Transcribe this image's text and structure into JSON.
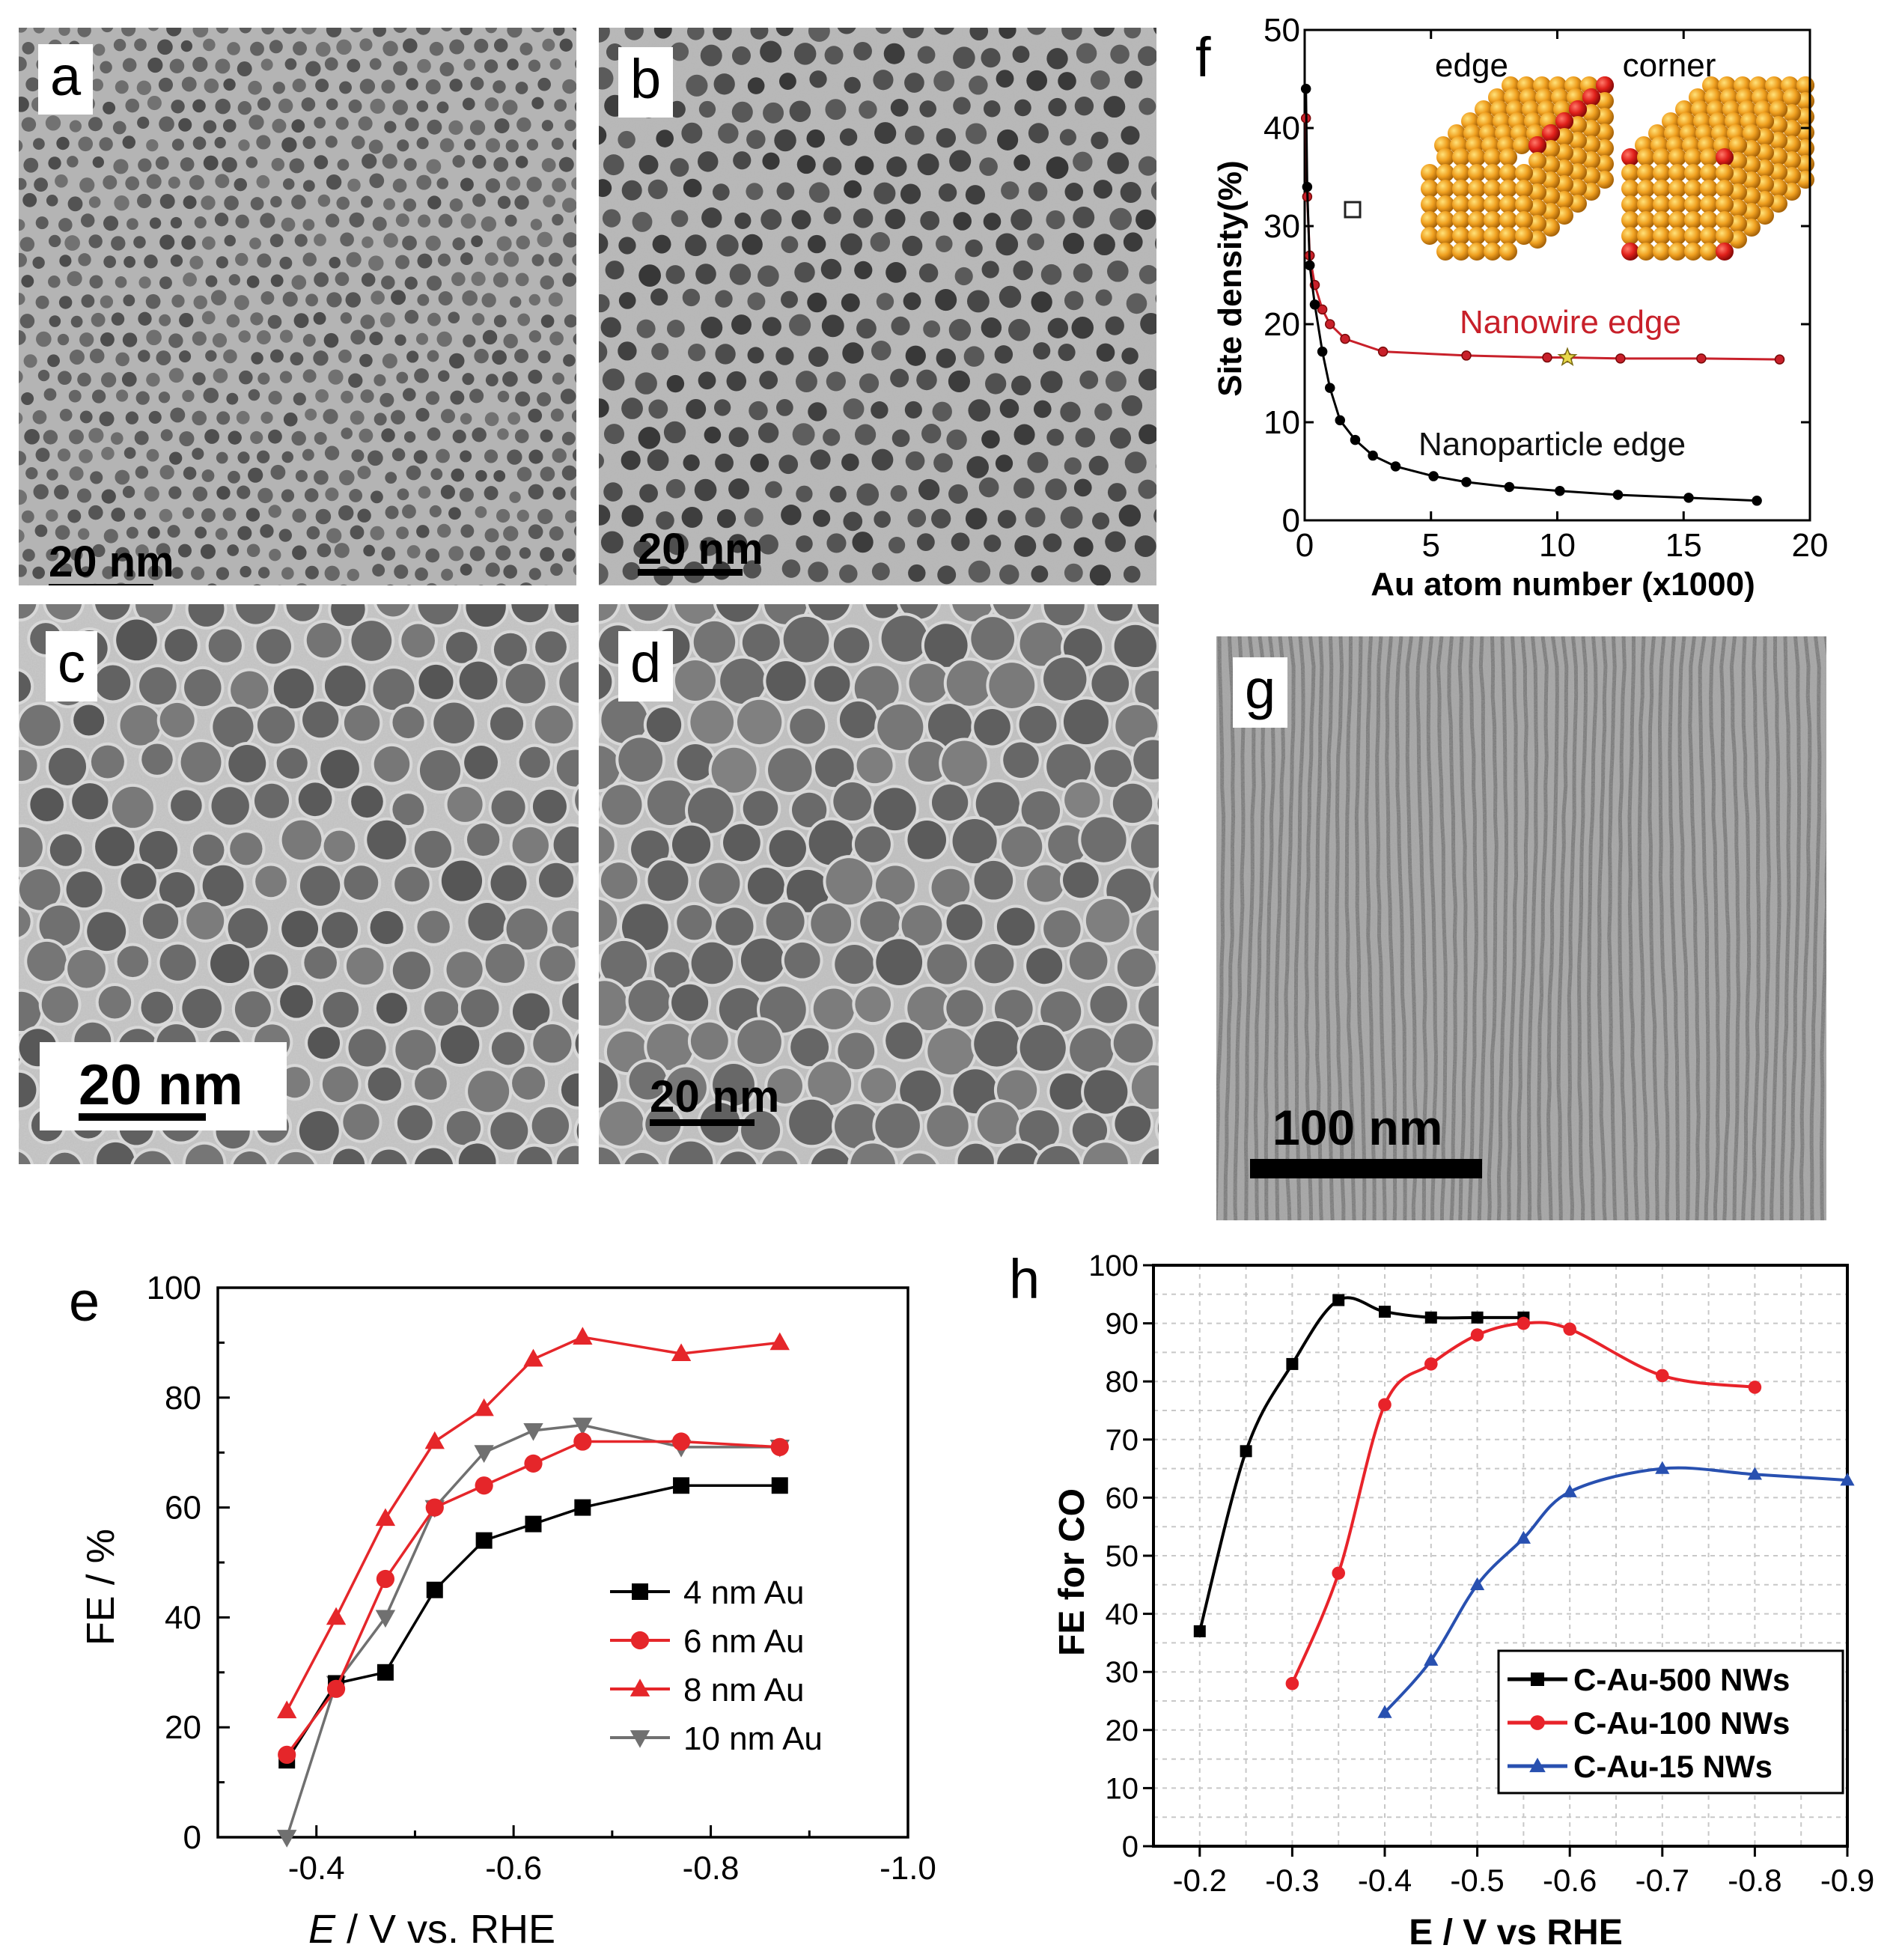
{
  "panels": {
    "a": {
      "label": "a",
      "scale_bar": "20 nm"
    },
    "b": {
      "label": "b",
      "scale_bar": "20 nm"
    },
    "c": {
      "label": "c",
      "scale_bar": "20 nm"
    },
    "d": {
      "label": "d",
      "scale_bar": "20 nm"
    },
    "g": {
      "label": "g",
      "scale_bar": "100 nm"
    }
  },
  "chart_data": [
    {
      "panel": "f",
      "label": "f",
      "type": "line",
      "xlabel": "Au atom number (x1000)",
      "ylabel": "Site density(%)",
      "xlim": [
        0,
        20
      ],
      "ylim": [
        0,
        50
      ],
      "xticks": [
        "0",
        "5",
        "10",
        "15",
        "20"
      ],
      "yticks": [
        "0",
        "10",
        "20",
        "30",
        "40",
        "50"
      ],
      "inset_labels": [
        "edge",
        "corner"
      ],
      "series": [
        {
          "name": "Nanowire edge",
          "color": "#c8202a",
          "x": [
            0.05,
            0.1,
            0.2,
            0.4,
            0.7,
            1.0,
            1.6,
            3.1,
            6.4,
            9.6,
            10.4,
            12.5,
            15.7,
            18.8
          ],
          "y": [
            41,
            33,
            27,
            24,
            21.5,
            20,
            18.5,
            17.2,
            16.8,
            16.6,
            16.6,
            16.5,
            16.5,
            16.4
          ]
        },
        {
          "name": "Nanoparticle edge",
          "color": "#000000",
          "x": [
            0.05,
            0.1,
            0.2,
            0.4,
            0.7,
            1.0,
            1.4,
            2.0,
            2.7,
            3.6,
            5.1,
            6.4,
            8.1,
            10.1,
            12.4,
            15.2,
            17.9
          ],
          "y": [
            44,
            34,
            26,
            22,
            17.2,
            13.5,
            10.2,
            8.2,
            6.6,
            5.5,
            4.5,
            3.9,
            3.4,
            3.0,
            2.6,
            2.3,
            2.0
          ]
        }
      ],
      "markers": [
        {
          "x": 10.4,
          "y": 16.6,
          "shape": "star",
          "color": "#e8d84a"
        }
      ]
    },
    {
      "panel": "e",
      "label": "e",
      "type": "line",
      "xlabel_italic": "E",
      "xlabel": " / V vs. RHE",
      "ylabel": "FE / %",
      "xlim": [
        -0.3,
        -1.0
      ],
      "ylim": [
        0,
        100
      ],
      "xticks": [
        "-0.4",
        "-0.6",
        "-0.8",
        "-1.0"
      ],
      "yticks": [
        "0",
        "20",
        "40",
        "60",
        "80",
        "100"
      ],
      "x": [
        -0.37,
        -0.42,
        -0.47,
        -0.52,
        -0.57,
        -0.62,
        -0.67,
        -0.77,
        -0.87
      ],
      "series": [
        {
          "name": "4 nm Au",
          "color": "#000000",
          "marker": "square",
          "values": [
            14,
            28,
            30,
            45,
            54,
            57,
            60,
            64,
            64
          ]
        },
        {
          "name": "6 nm Au",
          "color": "#e5262a",
          "marker": "circle",
          "values": [
            15,
            27,
            47,
            60,
            64,
            68,
            72,
            72,
            71
          ]
        },
        {
          "name": "8 nm Au",
          "color": "#e5262a",
          "marker": "triangle-up",
          "values": [
            23,
            40,
            58,
            72,
            78,
            87,
            91,
            88,
            90
          ]
        },
        {
          "name": "10 nm Au",
          "color": "#707070",
          "marker": "triangle-down",
          "values": [
            0,
            28,
            40,
            60,
            70,
            74,
            75,
            71,
            71
          ]
        }
      ],
      "legend": "center-right"
    },
    {
      "panel": "h",
      "label": "h",
      "type": "line",
      "xlabel": "E / V vs RHE",
      "ylabel": "FE for CO",
      "xlim": [
        -0.15,
        -0.9
      ],
      "ylim": [
        0,
        100
      ],
      "xticks": [
        "-0.2",
        "-0.3",
        "-0.4",
        "-0.5",
        "-0.6",
        "-0.7",
        "-0.8",
        "-0.9"
      ],
      "yticks": [
        "0",
        "10",
        "20",
        "30",
        "40",
        "50",
        "60",
        "70",
        "80",
        "90",
        "100"
      ],
      "grid": true,
      "series": [
        {
          "name": "C-Au-500 NWs",
          "color": "#000000",
          "marker": "square",
          "x": [
            -0.2,
            -0.25,
            -0.3,
            -0.35,
            -0.4,
            -0.45,
            -0.5,
            -0.55
          ],
          "values": [
            37,
            68,
            83,
            94,
            92,
            91,
            91,
            91
          ]
        },
        {
          "name": "C-Au-100 NWs",
          "color": "#e8232a",
          "marker": "circle",
          "x": [
            -0.3,
            -0.35,
            -0.4,
            -0.45,
            -0.5,
            -0.55,
            -0.6,
            -0.7,
            -0.8
          ],
          "values": [
            28,
            47,
            76,
            83,
            88,
            90,
            89,
            81,
            79
          ]
        },
        {
          "name": "C-Au-15 NWs",
          "color": "#2850b0",
          "marker": "triangle-up",
          "x": [
            -0.4,
            -0.45,
            -0.5,
            -0.55,
            -0.6,
            -0.7,
            -0.8,
            -0.9
          ],
          "values": [
            23,
            32,
            45,
            53,
            61,
            65,
            64,
            63
          ]
        }
      ],
      "legend": "bottom-right"
    }
  ]
}
